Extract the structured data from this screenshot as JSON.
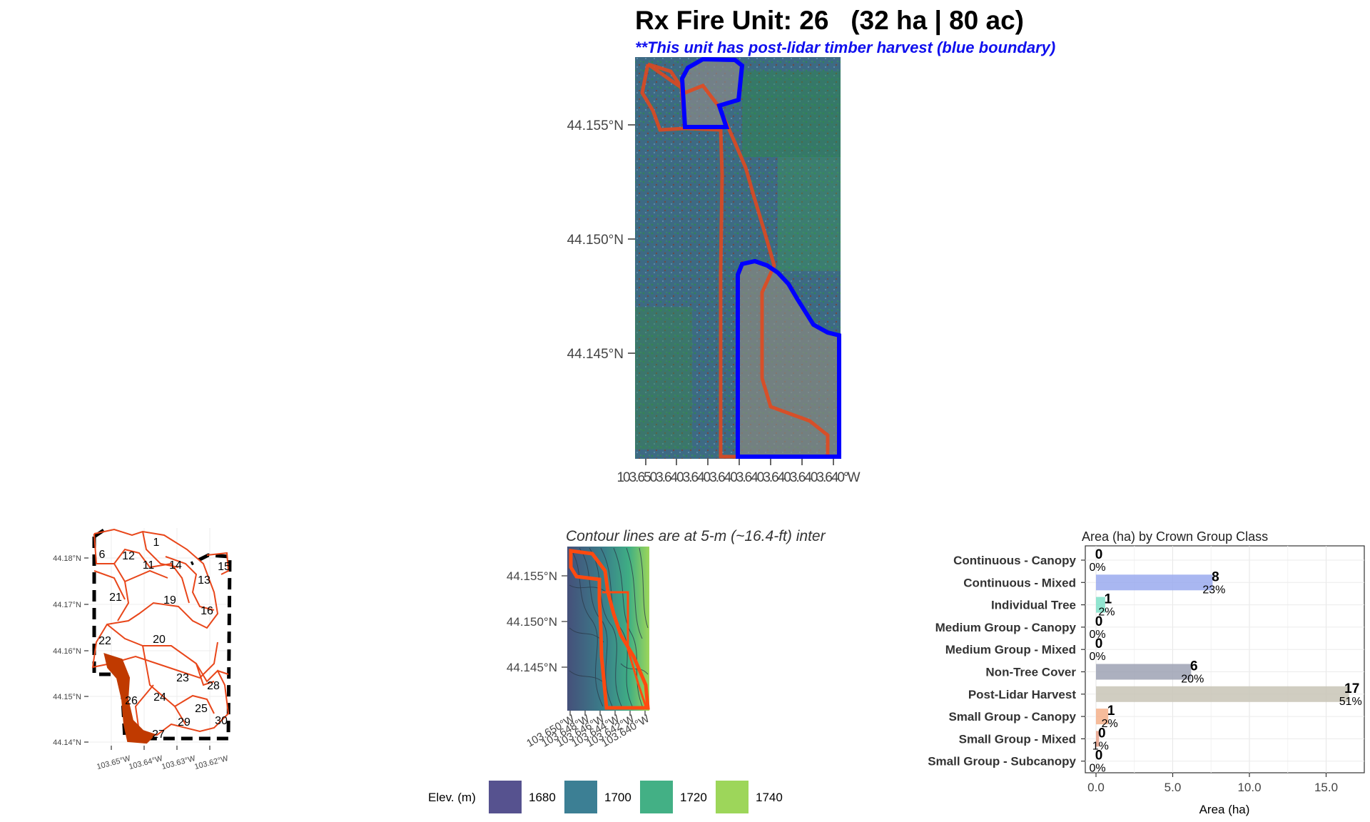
{
  "header": {
    "title": "Rx Fire Unit: 26   (32 ha | 80 ac)",
    "subtitle": "**This unit has post-lidar timber harvest (blue boundary)"
  },
  "colors": {
    "unit_boundary": "#e8461a",
    "harvest_boundary": "#0000ff",
    "highlight_unit": "#c03a00"
  },
  "main_map": {
    "y_ticks": [
      "44.155°N",
      "44.150°N",
      "44.145°N"
    ],
    "x_tick_text": "103.6503.6403.6403.6403.6403.6403.6403.640°W"
  },
  "overview_map": {
    "y_ticks": [
      "44.18°N",
      "44.17°N",
      "44.16°N",
      "44.15°N",
      "44.14°N"
    ],
    "x_ticks": [
      "103.65°W",
      "103.64°W",
      "103.63°W",
      "103.62°W"
    ],
    "unit_labels": [
      "1",
      "6",
      "12",
      "11",
      "14",
      "13",
      "15",
      "21",
      "19",
      "16",
      "22",
      "20",
      "23",
      "28",
      "26",
      "24",
      "25",
      "30",
      "29",
      "27"
    ]
  },
  "contour_map": {
    "title": "Contour lines are at 5-m (~16.4-ft) inter",
    "y_ticks": [
      "44.155°N",
      "44.150°N",
      "44.145°N"
    ],
    "x_ticks": [
      "103.650°W",
      "103.648°W",
      "103.646°W",
      "103.644°W",
      "103.642°W",
      "103.640°W"
    ],
    "legend": {
      "title": "Elev. (m)",
      "items": [
        {
          "label": "1680",
          "color": "#56528f"
        },
        {
          "label": "1700",
          "color": "#3c7f94"
        },
        {
          "label": "1720",
          "color": "#43b085"
        },
        {
          "label": "1740",
          "color": "#9dd65a"
        }
      ]
    }
  },
  "chart_data": {
    "type": "bar",
    "orientation": "horizontal",
    "title": "Area (ha) by Crown Group Class",
    "xlabel": "Area (ha)",
    "ylabel": "",
    "xlim": [
      0,
      18
    ],
    "x_ticks": [
      "0.0",
      "5.0",
      "10.0",
      "15.0"
    ],
    "grid": true,
    "categories": [
      "Continuous - Canopy",
      "Continuous - Mixed",
      "Individual Tree",
      "Medium Group - Canopy",
      "Medium Group - Mixed",
      "Non-Tree Cover",
      "Post-Lidar Harvest",
      "Small Group - Canopy",
      "Small Group - Mixed",
      "Small Group - Subcanopy"
    ],
    "values": [
      0.0,
      7.6,
      0.6,
      0.0,
      0.0,
      6.2,
      16.5,
      0.8,
      0.2,
      0.0
    ],
    "value_labels": [
      "0",
      "8",
      "1",
      "0",
      "0",
      "6",
      "17",
      "1",
      "0",
      "0"
    ],
    "percent_labels": [
      "0%",
      "23%",
      "2%",
      "0%",
      "0%",
      "20%",
      "51%",
      "2%",
      "1%",
      "0%"
    ],
    "colors": [
      "#a0b4f0",
      "#9aaaee",
      "#7fe0c8",
      "#c0c0c0",
      "#c0c0c0",
      "#9ea2b4",
      "#c8c4b6",
      "#f4b08a",
      "#e8a088",
      "#c0c0c0"
    ]
  }
}
